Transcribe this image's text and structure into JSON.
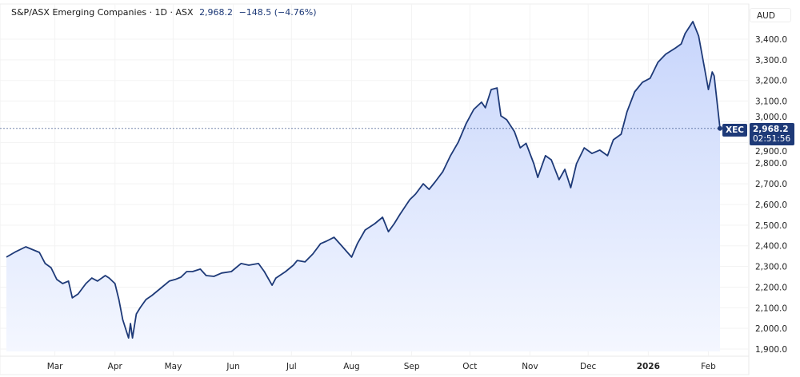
{
  "legend": {
    "title": "S&P/ASX Emerging Companies · 1D · ASX",
    "last": "2,968.2",
    "change": "−148.5 (−4.76%)"
  },
  "currency": "AUD",
  "price_tag": {
    "symbol": "XEC",
    "price": "2,968.2",
    "countdown": "02:51:56"
  },
  "colors": {
    "line": "#1e3a78",
    "fill_top": "#c7d5fb",
    "fill_bottom": "#f4f7ff"
  },
  "chart_data": {
    "type": "area",
    "title": "S&P/ASX Emerging Companies",
    "ylim": [
      1850,
      3500
    ],
    "yticks": [
      "1,900.0",
      "2,000.0",
      "2,100.0",
      "2,200.0",
      "2,300.0",
      "2,400.0",
      "2,500.0",
      "2,600.0",
      "2,700.0",
      "2,800.0",
      "2,900.0",
      "3,000.0",
      "3,100.0",
      "3,200.0",
      "3,300.0",
      "3,400.0"
    ],
    "ytick_values": [
      1900,
      2000,
      2100,
      2200,
      2300,
      2400,
      2500,
      2600,
      2700,
      2800,
      2900,
      3000,
      3100,
      3200,
      3300,
      3400
    ],
    "xticks": [
      {
        "label": "Mar",
        "date": "2025-03-01"
      },
      {
        "label": "Apr",
        "date": "2025-04-01"
      },
      {
        "label": "May",
        "date": "2025-05-01"
      },
      {
        "label": "Jun",
        "date": "2025-06-01"
      },
      {
        "label": "Jul",
        "date": "2025-07-01"
      },
      {
        "label": "Aug",
        "date": "2025-08-01"
      },
      {
        "label": "Sep",
        "date": "2025-09-01"
      },
      {
        "label": "Oct",
        "date": "2025-10-01"
      },
      {
        "label": "Nov",
        "date": "2025-11-01"
      },
      {
        "label": "Dec",
        "date": "2025-12-01"
      },
      {
        "label": "2026",
        "date": "2026-01-01"
      },
      {
        "label": "Feb",
        "date": "2026-02-01"
      }
    ],
    "grid": true,
    "last_value": 2968.2,
    "points": [
      [
        "2025-02-04",
        2345
      ],
      [
        "2025-02-09",
        2372
      ],
      [
        "2025-02-14",
        2395
      ],
      [
        "2025-02-21",
        2368
      ],
      [
        "2025-02-24",
        2314
      ],
      [
        "2025-02-27",
        2294
      ],
      [
        "2025-03-02",
        2237
      ],
      [
        "2025-03-05",
        2217
      ],
      [
        "2025-03-08",
        2229
      ],
      [
        "2025-03-10",
        2148
      ],
      [
        "2025-03-13",
        2167
      ],
      [
        "2025-03-17",
        2217
      ],
      [
        "2025-03-20",
        2244
      ],
      [
        "2025-03-23",
        2229
      ],
      [
        "2025-03-27",
        2256
      ],
      [
        "2025-03-29",
        2244
      ],
      [
        "2025-04-01",
        2217
      ],
      [
        "2025-04-03",
        2140
      ],
      [
        "2025-04-05",
        2043
      ],
      [
        "2025-04-08",
        1954
      ],
      [
        "2025-04-09",
        2024
      ],
      [
        "2025-04-10",
        1954
      ],
      [
        "2025-04-12",
        2070
      ],
      [
        "2025-04-14",
        2101
      ],
      [
        "2025-04-17",
        2140
      ],
      [
        "2025-04-20",
        2159
      ],
      [
        "2025-04-24",
        2190
      ],
      [
        "2025-04-29",
        2229
      ],
      [
        "2025-05-02",
        2237
      ],
      [
        "2025-05-05",
        2248
      ],
      [
        "2025-05-08",
        2275
      ],
      [
        "2025-05-11",
        2275
      ],
      [
        "2025-05-15",
        2287
      ],
      [
        "2025-05-18",
        2256
      ],
      [
        "2025-05-22",
        2252
      ],
      [
        "2025-05-26",
        2268
      ],
      [
        "2025-05-31",
        2275
      ],
      [
        "2025-06-05",
        2314
      ],
      [
        "2025-06-09",
        2306
      ],
      [
        "2025-06-14",
        2314
      ],
      [
        "2025-06-17",
        2275
      ],
      [
        "2025-06-21",
        2209
      ],
      [
        "2025-06-23",
        2244
      ],
      [
        "2025-06-28",
        2275
      ],
      [
        "2025-07-02",
        2306
      ],
      [
        "2025-07-04",
        2329
      ],
      [
        "2025-07-08",
        2322
      ],
      [
        "2025-07-12",
        2360
      ],
      [
        "2025-07-16",
        2410
      ],
      [
        "2025-07-19",
        2422
      ],
      [
        "2025-07-23",
        2441
      ],
      [
        "2025-07-27",
        2399
      ],
      [
        "2025-08-01",
        2345
      ],
      [
        "2025-08-04",
        2410
      ],
      [
        "2025-08-08",
        2476
      ],
      [
        "2025-08-13",
        2507
      ],
      [
        "2025-08-17",
        2538
      ],
      [
        "2025-08-20",
        2468
      ],
      [
        "2025-08-23",
        2507
      ],
      [
        "2025-08-26",
        2553
      ],
      [
        "2025-08-31",
        2623
      ],
      [
        "2025-09-03",
        2650
      ],
      [
        "2025-09-07",
        2700
      ],
      [
        "2025-09-10",
        2673
      ],
      [
        "2025-09-13",
        2708
      ],
      [
        "2025-09-17",
        2758
      ],
      [
        "2025-09-21",
        2836
      ],
      [
        "2025-09-25",
        2901
      ],
      [
        "2025-09-29",
        2990
      ],
      [
        "2025-10-03",
        3060
      ],
      [
        "2025-10-07",
        3095
      ],
      [
        "2025-10-09",
        3068
      ],
      [
        "2025-10-12",
        3156
      ],
      [
        "2025-10-15",
        3164
      ],
      [
        "2025-10-17",
        3029
      ],
      [
        "2025-10-20",
        3010
      ],
      [
        "2025-10-24",
        2952
      ],
      [
        "2025-10-27",
        2874
      ],
      [
        "2025-10-30",
        2896
      ],
      [
        "2025-11-03",
        2797
      ],
      [
        "2025-11-05",
        2731
      ],
      [
        "2025-11-09",
        2836
      ],
      [
        "2025-11-12",
        2816
      ],
      [
        "2025-11-16",
        2720
      ],
      [
        "2025-11-19",
        2770
      ],
      [
        "2025-11-22",
        2681
      ],
      [
        "2025-11-25",
        2797
      ],
      [
        "2025-11-29",
        2874
      ],
      [
        "2025-12-03",
        2847
      ],
      [
        "2025-12-07",
        2863
      ],
      [
        "2025-12-11",
        2836
      ],
      [
        "2025-12-14",
        2913
      ],
      [
        "2025-12-18",
        2940
      ],
      [
        "2025-12-21",
        3048
      ],
      [
        "2025-12-25",
        3145
      ],
      [
        "2025-12-29",
        3191
      ],
      [
        "2026-01-02",
        3211
      ],
      [
        "2026-01-06",
        3288
      ],
      [
        "2026-01-10",
        3327
      ],
      [
        "2026-01-15",
        3357
      ],
      [
        "2026-01-18",
        3377
      ],
      [
        "2026-01-20",
        3427
      ],
      [
        "2026-01-24",
        3485
      ],
      [
        "2026-01-27",
        3415
      ],
      [
        "2026-01-30",
        3261
      ],
      [
        "2026-02-01",
        3156
      ],
      [
        "2026-02-03",
        3241
      ],
      [
        "2026-02-04",
        3222
      ],
      [
        "2026-02-07",
        2968.2
      ]
    ]
  }
}
